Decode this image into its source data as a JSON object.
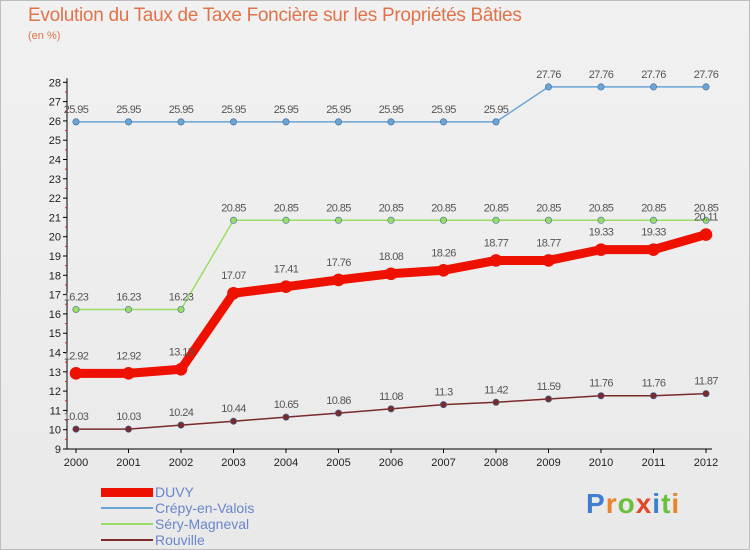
{
  "title": "Evolution du Taux de Taxe Foncière sur les Propriétés Bâties",
  "unit": "(en %)",
  "logo": {
    "text": "Proxiti"
  },
  "chart_data": {
    "type": "line",
    "title": "Evolution du Taux de Taxe Foncière sur les Propriétés Bâties",
    "ylabel": "(en %)",
    "xlabel": "",
    "categories": [
      "2000",
      "2001",
      "2002",
      "2003",
      "2004",
      "2005",
      "2006",
      "2007",
      "2008",
      "2009",
      "2010",
      "2011",
      "2012"
    ],
    "ylim": [
      9,
      28
    ],
    "yticks": [
      9,
      10,
      11,
      12,
      13,
      14,
      15,
      16,
      17,
      18,
      19,
      20,
      21,
      22,
      23,
      24,
      25,
      26,
      27,
      28
    ],
    "grid": false,
    "legend_position": "bottom-left",
    "series": [
      {
        "name": "DUVY",
        "color": "#ee1100",
        "width": 9,
        "values": [
          12.92,
          12.92,
          13.13,
          17.07,
          17.41,
          17.76,
          18.08,
          18.26,
          18.77,
          18.77,
          19.33,
          19.33,
          20.11
        ],
        "labels": [
          "12.92",
          "12.92",
          "13.13",
          "17.07",
          "17.41",
          "17.76",
          "18.08",
          "18.26",
          "18.77",
          "18.77",
          "19.33",
          "19.33",
          "20.11"
        ]
      },
      {
        "name": "Crépy-en-Valois",
        "color": "#6aa5d6",
        "width": 1.5,
        "values": [
          25.95,
          25.95,
          25.95,
          25.95,
          25.95,
          25.95,
          25.95,
          25.95,
          25.95,
          27.76,
          27.76,
          27.76,
          27.76
        ],
        "labels": [
          "25.95",
          "25.95",
          "25.95",
          "25.95",
          "25.95",
          "25.95",
          "25.95",
          "25.95",
          "25.95",
          "27.76",
          "27.76",
          "27.76",
          "27.76"
        ]
      },
      {
        "name": "Séry-Magneval",
        "color": "#99dd66",
        "width": 1.5,
        "values": [
          16.23,
          16.23,
          16.23,
          20.85,
          20.85,
          20.85,
          20.85,
          20.85,
          20.85,
          20.85,
          20.85,
          20.85,
          20.85
        ],
        "labels": [
          "16.23",
          "16.23",
          "16.23",
          "20.85",
          "20.85",
          "20.85",
          "20.85",
          "20.85",
          "20.85",
          "20.85",
          "20.85",
          "20.85",
          "20.85"
        ]
      },
      {
        "name": "Rouville",
        "color": "#7a2a2a",
        "width": 1.5,
        "values": [
          10.03,
          10.03,
          10.24,
          10.44,
          10.65,
          10.86,
          11.08,
          11.3,
          11.42,
          11.59,
          11.76,
          11.76,
          11.87
        ],
        "labels": [
          "10.03",
          "10.03",
          "10.24",
          "10.44",
          "10.65",
          "10.86",
          "11.08",
          "11.3",
          "11.42",
          "11.59",
          "11.76",
          "11.76",
          "11.87"
        ]
      }
    ]
  },
  "colors": {
    "title": "#e0734a",
    "legend_text": "#6a85cc",
    "axis": "#000000",
    "tick_label": "#222222",
    "data_label": "#555555"
  }
}
